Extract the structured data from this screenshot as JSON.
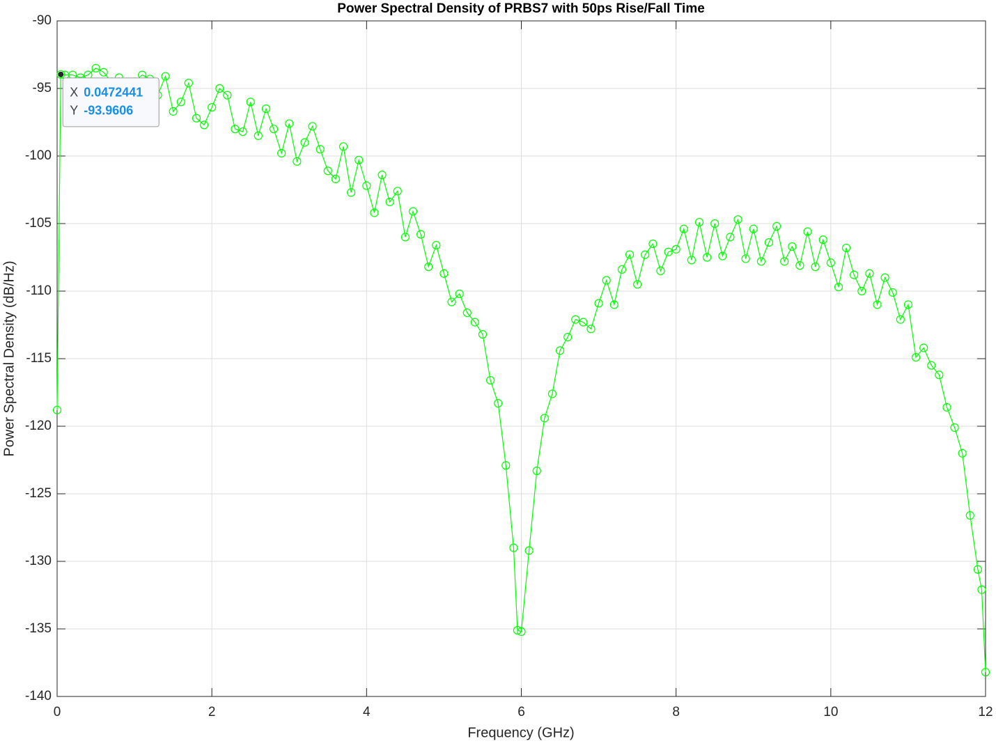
{
  "chart_data": {
    "type": "line",
    "title": "Power Spectral Density of PRBS7 with 50ps Rise/Fall Time",
    "x_label": "Frequency (GHz)",
    "y_label": "Power Spectral Density (dB/Hz)",
    "x": [
      0,
      0.0472441,
      0.1,
      0.2,
      0.3,
      0.4,
      0.5,
      0.6,
      0.7,
      0.8,
      0.9,
      1.0,
      1.1,
      1.2,
      1.3,
      1.4,
      1.5,
      1.6,
      1.7,
      1.8,
      1.9,
      2.0,
      2.1,
      2.2,
      2.3,
      2.4,
      2.5,
      2.6,
      2.7,
      2.8,
      2.9,
      3.0,
      3.1,
      3.2,
      3.3,
      3.4,
      3.5,
      3.6,
      3.7,
      3.8,
      3.9,
      4.0,
      4.1,
      4.2,
      4.3,
      4.4,
      4.5,
      4.6,
      4.7,
      4.8,
      4.9,
      5.0,
      5.1,
      5.2,
      5.3,
      5.4,
      5.5,
      5.6,
      5.7,
      5.8,
      5.9,
      5.95,
      6.0,
      6.1,
      6.2,
      6.3,
      6.4,
      6.5,
      6.6,
      6.7,
      6.8,
      6.9,
      7.0,
      7.1,
      7.2,
      7.3,
      7.4,
      7.5,
      7.6,
      7.7,
      7.8,
      7.9,
      8.0,
      8.1,
      8.2,
      8.3,
      8.4,
      8.5,
      8.6,
      8.7,
      8.8,
      8.9,
      9.0,
      9.1,
      9.2,
      9.3,
      9.4,
      9.5,
      9.6,
      9.7,
      9.8,
      9.9,
      10.0,
      10.1,
      10.2,
      10.3,
      10.4,
      10.5,
      10.6,
      10.7,
      10.8,
      10.9,
      11.0,
      11.1,
      11.2,
      11.3,
      11.4,
      11.5,
      11.6,
      11.7,
      11.8,
      11.9,
      11.95,
      12.0
    ],
    "series": [
      {
        "color": "#00ff00",
        "marker": "circle",
        "values": [
          -118.8,
          -93.9606,
          -94,
          -94,
          -94.2,
          -94,
          -93.5,
          -93.8,
          -94.5,
          -94.2,
          -95,
          -94.5,
          -94,
          -94.3,
          -95.5,
          -94.1,
          -96.7,
          -96,
          -94.6,
          -97.2,
          -97.7,
          -96.4,
          -95,
          -95.5,
          -98,
          -98.2,
          -96,
          -98.5,
          -96.5,
          -98,
          -99.8,
          -97.6,
          -100.4,
          -99,
          -97.8,
          -99.5,
          -101.1,
          -101.7,
          -99.3,
          -102.7,
          -100.3,
          -102.2,
          -104.2,
          -101.4,
          -103.4,
          -102.6,
          -106,
          -104.1,
          -105.8,
          -108.2,
          -106.6,
          -108.7,
          -110.8,
          -110.2,
          -111.6,
          -112.3,
          -113.2,
          -116.6,
          -118.3,
          -122.9,
          -129,
          -135.1,
          -135.2,
          -129.2,
          -123.3,
          -119.4,
          -117.6,
          -114.4,
          -113.4,
          -112.1,
          -112.3,
          -112.8,
          -110.9,
          -109.2,
          -111,
          -108.4,
          -107.3,
          -109.5,
          -107.3,
          -106.5,
          -108.5,
          -107.1,
          -106.9,
          -105.4,
          -107.7,
          -104.9,
          -107.5,
          -105,
          -107.4,
          -106,
          -104.7,
          -107.6,
          -105.4,
          -107.8,
          -106.4,
          -105.2,
          -107.8,
          -106.7,
          -108.1,
          -105.6,
          -108.2,
          -106.2,
          -107.9,
          -109.7,
          -106.8,
          -108.8,
          -110,
          -108.7,
          -111,
          -109,
          -110.1,
          -112.1,
          -111,
          -114.9,
          -114.2,
          -115.5,
          -116.2,
          -118.6,
          -120.1,
          -122,
          -126.6,
          -130.6,
          -132.1,
          -138.2
        ]
      }
    ],
    "xlim": [
      0,
      12
    ],
    "xticks": [
      0,
      2,
      4,
      6,
      8,
      10,
      12
    ],
    "ylim": [
      -140,
      -90
    ],
    "yticks": [
      -140,
      -135,
      -130,
      -125,
      -120,
      -115,
      -110,
      -105,
      -100,
      -95,
      -90
    ],
    "grid": true,
    "datatip": {
      "x_label": "X",
      "x": 0.0472441,
      "y_label": "Y",
      "y": -93.9606
    }
  }
}
